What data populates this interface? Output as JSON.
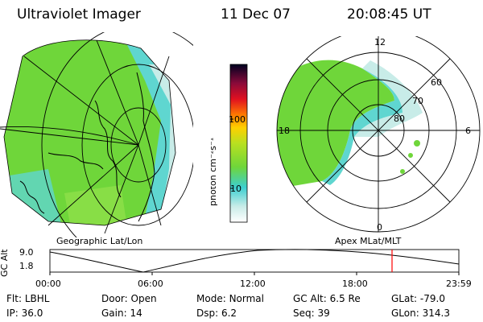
{
  "header": {
    "instrument": "Ultraviolet Imager",
    "date": "11 Dec 07",
    "time": "20:08:45 UT"
  },
  "colorbar": {
    "unit_label": "photon cm⁻²s⁻¹",
    "ticks": [
      "100",
      "10"
    ],
    "scale": "log"
  },
  "panels": {
    "left_caption": "Geographic Lat/Lon",
    "right_caption": "Apex MLat/MLT"
  },
  "polar_plot": {
    "mlt_labels": {
      "top": "12",
      "left": "18",
      "right": "6",
      "bottom": "0"
    },
    "lat_labels": [
      "60",
      "70",
      "80"
    ]
  },
  "altitude_strip": {
    "axis_label": "GC Alt",
    "y_max": "9.0",
    "y_min": "1.8",
    "x_ticks": [
      "00:00",
      "06:00",
      "12:00",
      "18:00",
      "23:59"
    ],
    "current_time_marker": "20:08:45",
    "marker_color": "#ff0000"
  },
  "status": {
    "row1": [
      {
        "k": "Flt:",
        "v": "LBHL"
      },
      {
        "k": "Door:",
        "v": "Open"
      },
      {
        "k": "Mode:",
        "v": "Normal"
      },
      {
        "k": "GC Alt:",
        "v": "6.5 Re"
      },
      {
        "k": "GLat:",
        "v": "-79.0"
      }
    ],
    "row2": [
      {
        "k": "IP:",
        "v": "36.0"
      },
      {
        "k": "Gain:",
        "v": "14"
      },
      {
        "k": "Dsp:",
        "v": "6.2"
      },
      {
        "k": "Seq:",
        "v": "39"
      },
      {
        "k": "GLon:",
        "v": "314.3"
      }
    ]
  },
  "colors": {
    "aurora_green": "#6fd63a",
    "aurora_cyan": "#5fd6d0",
    "aurora_pale": "#c8ece8"
  }
}
